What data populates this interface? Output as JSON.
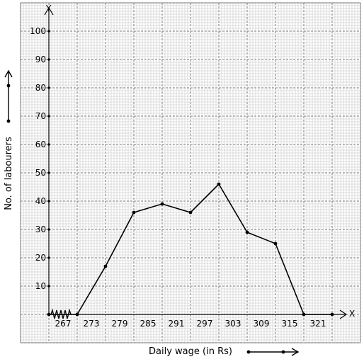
{
  "chart_data": {
    "type": "line",
    "title": "",
    "xlabel": "Daily wage (in Rs)",
    "ylabel": "No. of labourers",
    "x_axis_letter": "X",
    "y_axis_letter": "Y",
    "x_ticks": [
      "267",
      "273",
      "279",
      "285",
      "291",
      "297",
      "303",
      "309",
      "315",
      "321"
    ],
    "y_ticks": [
      "10",
      "20",
      "30",
      "40",
      "50",
      "60",
      "70",
      "80",
      "90",
      "100"
    ],
    "ylim": [
      0,
      100
    ],
    "x_break": true,
    "grid": true,
    "series": [
      {
        "points": [
          {
            "x": 264,
            "y": 0
          },
          {
            "x": 270,
            "y": 0
          },
          {
            "x": 276,
            "y": 17
          },
          {
            "x": 282,
            "y": 36
          },
          {
            "x": 288,
            "y": 39
          },
          {
            "x": 294,
            "y": 36
          },
          {
            "x": 300,
            "y": 46
          },
          {
            "x": 306,
            "y": 29
          },
          {
            "x": 312,
            "y": 25
          },
          {
            "x": 318,
            "y": 0
          },
          {
            "x": 324,
            "y": 0
          }
        ]
      }
    ]
  }
}
